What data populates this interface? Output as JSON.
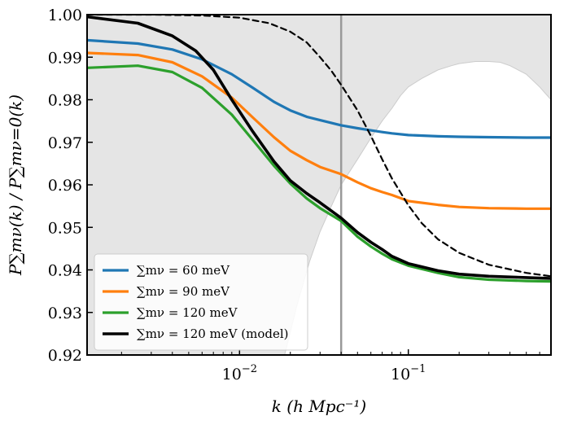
{
  "chart_data": {
    "type": "line",
    "title": "",
    "xlabel": "k  (h Mpc⁻¹)",
    "ylabel": "P∑mν(k) / P∑mν=0(k)",
    "xscale": "log",
    "xlim": [
      0.00125,
      0.7
    ],
    "ylim": [
      0.92,
      1.0
    ],
    "x_ticks": [
      {
        "value": 0.01,
        "base": "10",
        "exp": "−2"
      },
      {
        "value": 0.1,
        "base": "10",
        "exp": "−1"
      }
    ],
    "y_ticks": [
      0.92,
      0.93,
      0.94,
      0.95,
      0.96,
      0.97,
      0.98,
      0.99,
      1.0
    ],
    "y_tick_labels": [
      "0.92",
      "0.93",
      "0.94",
      "0.95",
      "0.96",
      "0.97",
      "0.98",
      "0.99",
      "1.00"
    ],
    "vline": {
      "x": 0.04,
      "color": "#999999"
    },
    "shaded_region": {
      "color": "#e5e5e5",
      "upper_edge_x": [
        0.0185,
        0.022,
        0.026,
        0.03,
        0.035,
        0.04,
        0.05,
        0.06,
        0.07,
        0.08,
        0.09,
        0.1,
        0.12,
        0.15,
        0.18,
        0.2,
        0.25,
        0.3,
        0.35,
        0.4,
        0.5,
        0.6,
        0.7
      ],
      "upper_edge_y": [
        0.92,
        0.932,
        0.942,
        0.949,
        0.955,
        0.96,
        0.966,
        0.971,
        0.975,
        0.978,
        0.981,
        0.983,
        0.985,
        0.987,
        0.988,
        0.9885,
        0.989,
        0.989,
        0.9888,
        0.988,
        0.986,
        0.983,
        0.98
      ]
    },
    "series": [
      {
        "name": "∑mν = 60 meV",
        "color": "#1f77b4",
        "width": 3.2,
        "dash": "",
        "x": [
          0.00125,
          0.0025,
          0.004,
          0.006,
          0.009,
          0.012,
          0.016,
          0.02,
          0.025,
          0.03,
          0.04,
          0.05,
          0.06,
          0.07,
          0.08,
          0.1,
          0.15,
          0.2,
          0.3,
          0.5,
          0.7
        ],
        "y": [
          0.994,
          0.9932,
          0.9918,
          0.9895,
          0.986,
          0.9828,
          0.9795,
          0.9775,
          0.976,
          0.9752,
          0.974,
          0.9733,
          0.9728,
          0.9724,
          0.9721,
          0.9717,
          0.9714,
          0.9713,
          0.9712,
          0.9711,
          0.9711
        ]
      },
      {
        "name": "∑mν = 90 meV",
        "color": "#ff7f0e",
        "width": 3.2,
        "dash": "",
        "x": [
          0.00125,
          0.0025,
          0.004,
          0.006,
          0.009,
          0.012,
          0.016,
          0.02,
          0.025,
          0.03,
          0.04,
          0.05,
          0.06,
          0.07,
          0.08,
          0.1,
          0.15,
          0.2,
          0.3,
          0.5,
          0.7
        ],
        "y": [
          0.991,
          0.9905,
          0.9888,
          0.9855,
          0.9805,
          0.9758,
          0.9712,
          0.968,
          0.9658,
          0.9642,
          0.9625,
          0.9606,
          0.9592,
          0.9583,
          0.9576,
          0.9562,
          0.9553,
          0.9548,
          0.9545,
          0.9544,
          0.9544
        ]
      },
      {
        "name": "∑mν = 120 meV",
        "color": "#2ca02c",
        "width": 3.2,
        "dash": "",
        "x": [
          0.00125,
          0.0025,
          0.004,
          0.006,
          0.009,
          0.012,
          0.016,
          0.02,
          0.025,
          0.03,
          0.04,
          0.05,
          0.06,
          0.07,
          0.08,
          0.1,
          0.15,
          0.2,
          0.3,
          0.5,
          0.7
        ],
        "y": [
          0.9875,
          0.988,
          0.9865,
          0.9828,
          0.9765,
          0.9705,
          0.9645,
          0.9603,
          0.9568,
          0.9545,
          0.9515,
          0.9478,
          0.9455,
          0.9438,
          0.9425,
          0.941,
          0.9393,
          0.9383,
          0.9377,
          0.9374,
          0.9373
        ]
      },
      {
        "name": "∑mν = 120 meV",
        "name_suffix": "(model)",
        "color": "#000000",
        "width": 3.6,
        "dash": "",
        "x": [
          0.00125,
          0.0025,
          0.004,
          0.0055,
          0.007,
          0.009,
          0.012,
          0.016,
          0.02,
          0.025,
          0.03,
          0.04,
          0.05,
          0.06,
          0.07,
          0.08,
          0.1,
          0.15,
          0.2,
          0.3,
          0.5,
          0.7
        ],
        "y": [
          0.9995,
          0.998,
          0.995,
          0.9915,
          0.987,
          0.98,
          0.9725,
          0.9655,
          0.961,
          0.958,
          0.9558,
          0.9522,
          0.9488,
          0.9465,
          0.9448,
          0.9432,
          0.9415,
          0.9398,
          0.939,
          0.9385,
          0.9382,
          0.938
        ]
      },
      {
        "name": "",
        "color": "#000000",
        "width": 2.2,
        "dash": "7,5",
        "x": [
          0.00125,
          0.003,
          0.006,
          0.01,
          0.015,
          0.02,
          0.025,
          0.03,
          0.035,
          0.04,
          0.05,
          0.06,
          0.07,
          0.08,
          0.1,
          0.12,
          0.15,
          0.2,
          0.3,
          0.5,
          0.7
        ],
        "y": [
          1.0,
          1.0,
          0.9998,
          0.9993,
          0.998,
          0.996,
          0.9935,
          0.99,
          0.9868,
          0.9835,
          0.9775,
          0.9715,
          0.966,
          0.9615,
          0.9552,
          0.951,
          0.9472,
          0.944,
          0.9412,
          0.9393,
          0.9385
        ]
      }
    ]
  }
}
